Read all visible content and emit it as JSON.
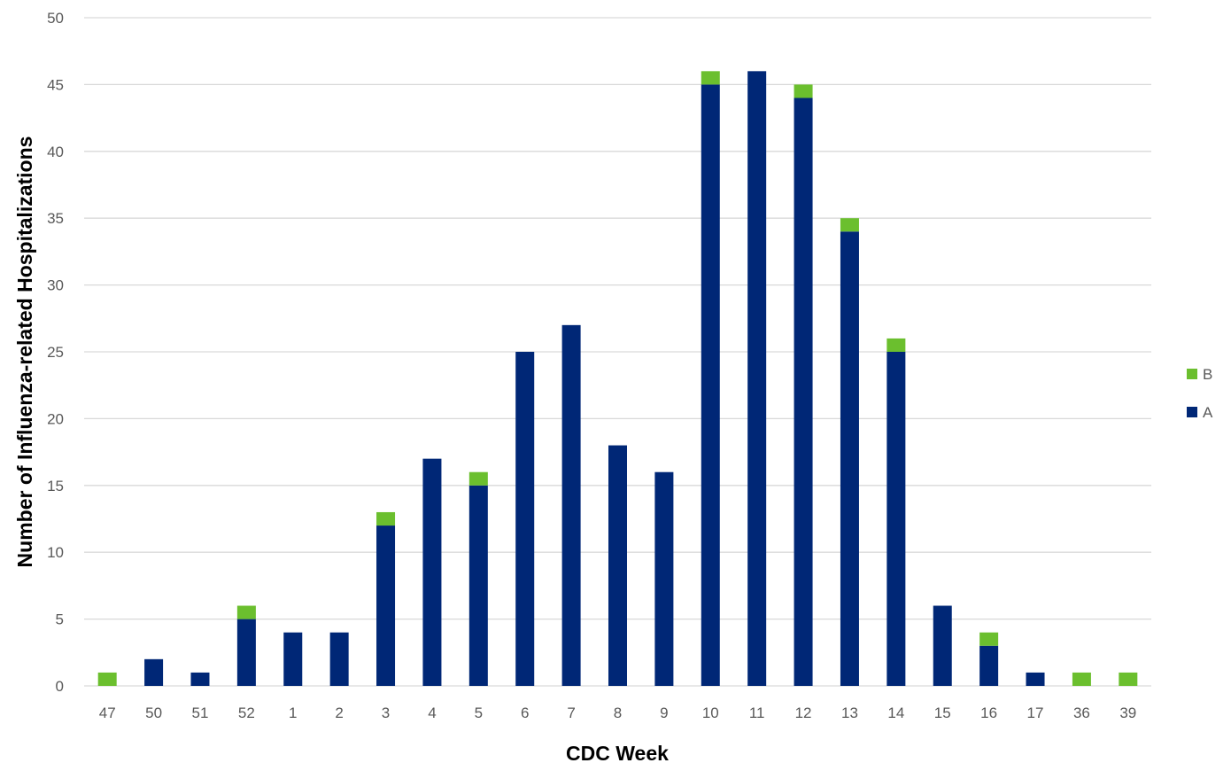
{
  "chart_data": {
    "type": "bar",
    "stacked": true,
    "title": "",
    "xlabel": "CDC Week",
    "ylabel": "Number of  Influenza-related Hospitalizations",
    "ylim": [
      0,
      50
    ],
    "yticks": [
      0,
      5,
      10,
      15,
      20,
      25,
      30,
      35,
      40,
      45,
      50
    ],
    "grid": true,
    "legend_position": "right",
    "categories": [
      "47",
      "50",
      "51",
      "52",
      "1",
      "2",
      "3",
      "4",
      "5",
      "6",
      "7",
      "8",
      "9",
      "10",
      "11",
      "12",
      "13",
      "14",
      "15",
      "16",
      "17",
      "36",
      "39"
    ],
    "series": [
      {
        "name": "A",
        "color": "#002776",
        "values": [
          0,
          2,
          1,
          5,
          4,
          4,
          12,
          17,
          15,
          25,
          27,
          18,
          16,
          45,
          46,
          44,
          34,
          25,
          6,
          3,
          1,
          0,
          0
        ]
      },
      {
        "name": "B",
        "color": "#6bbf2e",
        "values": [
          1,
          0,
          0,
          1,
          0,
          0,
          1,
          0,
          1,
          0,
          0,
          0,
          0,
          1,
          0,
          1,
          1,
          1,
          0,
          1,
          0,
          1,
          1
        ]
      }
    ],
    "legend_order": [
      "B",
      "A"
    ],
    "gridline_color": "#d9d9d9"
  }
}
